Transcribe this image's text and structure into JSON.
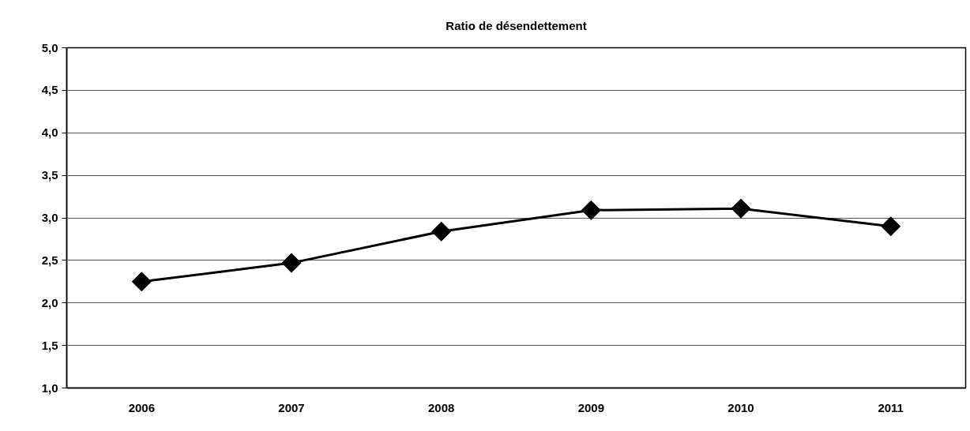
{
  "chart_data": {
    "type": "line",
    "title": "Ratio de désendettement",
    "categories": [
      "2006",
      "2007",
      "2008",
      "2009",
      "2010",
      "2011"
    ],
    "series": [
      {
        "color": "#000000",
        "values": [
          2.25,
          2.47,
          2.84,
          3.09,
          3.11,
          2.9
        ]
      }
    ],
    "ylim": [
      1.0,
      5.0
    ],
    "yticks": [
      {
        "value": 1.0,
        "label": "1,0"
      },
      {
        "value": 1.5,
        "label": "1,5"
      },
      {
        "value": 2.0,
        "label": "2,0"
      },
      {
        "value": 2.5,
        "label": "2,5"
      },
      {
        "value": 3.0,
        "label": "3,0"
      },
      {
        "value": 3.5,
        "label": "3,5"
      },
      {
        "value": 4.0,
        "label": "4,0"
      },
      {
        "value": 4.5,
        "label": "4,5"
      },
      {
        "value": 5.0,
        "label": "5,0"
      }
    ],
    "grid": "y",
    "marker": "diamond",
    "line_style": "solid"
  }
}
